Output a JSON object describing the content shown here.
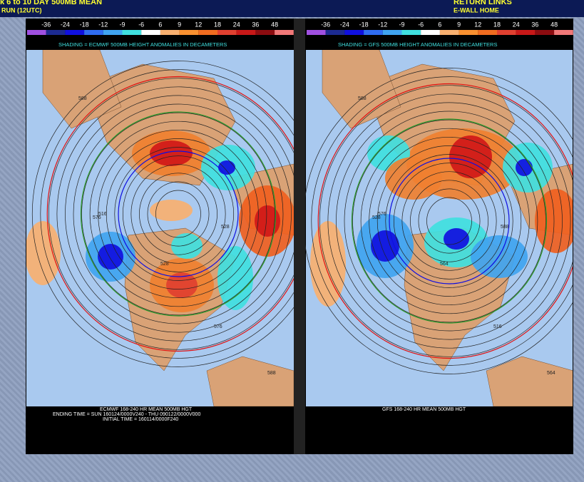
{
  "header": {
    "title": "k 6 to 10 DAY 500MB MEAN",
    "run": "RUN (12UTC)",
    "links_title": "RETURN LINKS",
    "home_link": "E-WALL HOME"
  },
  "legend_labels": [
    "-36",
    "-24",
    "-18",
    "-12",
    "-9",
    "-6",
    "6",
    "9",
    "12",
    "18",
    "24",
    "36",
    "48"
  ],
  "panels": [
    {
      "caption": "SHADING = ECMWF 500MB HEIGHT ANOMALIES IN DECAMETERS",
      "footer": [
        "ECMWF 168-240 HR MEAN 500MB HGT",
        "ENDING TIME = SUN 160124/0000V240 - THU 090122/0000V000",
        "INITIAL TIME = 160114/0000F240"
      ],
      "contour_labels": [
        "588",
        "576",
        "528",
        "516",
        "576",
        "528",
        "588"
      ]
    },
    {
      "caption": "SHADING = GFS 500MB HEIGHT ANOMALIES IN DECAMETERS",
      "footer": [
        "GFS 168-240 HR MEAN 500MB HGT"
      ],
      "contour_labels": [
        "588",
        "528",
        "564",
        "576",
        "516",
        "588",
        "564"
      ]
    }
  ]
}
